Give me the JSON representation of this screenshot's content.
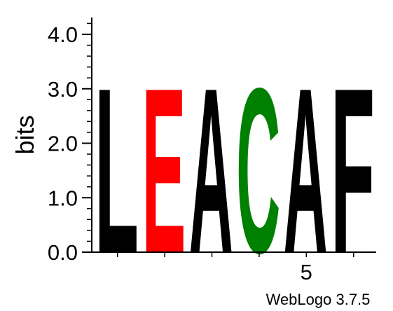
{
  "chart_data": {
    "type": "sequence-logo",
    "ylabel": "bits",
    "ylim": [
      0,
      4.3
    ],
    "y_ticks": [
      {
        "value": 0,
        "label": "0.0"
      },
      {
        "value": 1,
        "label": "1.0"
      },
      {
        "value": 2,
        "label": "2.0"
      },
      {
        "value": 3,
        "label": "3.0"
      },
      {
        "value": 4,
        "label": "4.0"
      }
    ],
    "x_ticks": [
      {
        "position": 5,
        "label": "5"
      }
    ],
    "positions": [
      {
        "position": 1,
        "letter": "L",
        "bits": 3.1,
        "color": "#000000"
      },
      {
        "position": 2,
        "letter": "E",
        "bits": 3.1,
        "color": "#ff0000"
      },
      {
        "position": 3,
        "letter": "A",
        "bits": 3.1,
        "color": "#000000"
      },
      {
        "position": 4,
        "letter": "C",
        "bits": 3.1,
        "color": "#008000"
      },
      {
        "position": 5,
        "letter": "A",
        "bits": 3.1,
        "color": "#000000"
      },
      {
        "position": 6,
        "letter": "F",
        "bits": 3.1,
        "color": "#000000"
      }
    ],
    "footer": "WebLogo 3.7.5"
  }
}
